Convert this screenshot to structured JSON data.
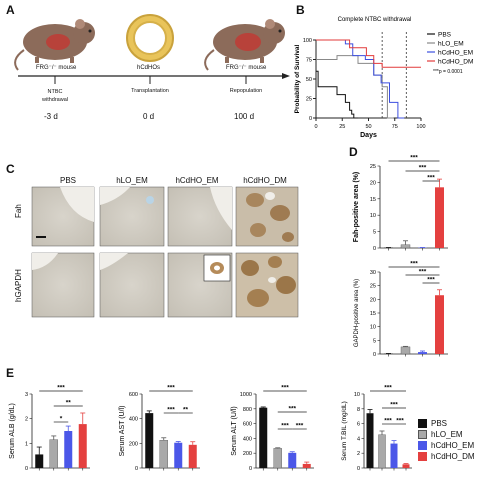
{
  "panels": {
    "A": "A",
    "B": "B",
    "C": "C",
    "D": "D",
    "E": "E"
  },
  "timeline": {
    "mouse_label_1": "FRG⁻/⁻ mouse",
    "device_label": "hCdHOs",
    "mouse_label_2": "FRG⁻/⁻ mouse",
    "events": [
      "NTBC withdrawal",
      "Transplantation",
      "Repopulation"
    ],
    "times": [
      "-3 d",
      "0 d",
      "100 d"
    ]
  },
  "survival": {
    "title": "Complete NTBC withdrawal",
    "ylabel": "Probability of Survival",
    "xlabel": "Days",
    "pvalue": "***p = 0.0001",
    "legend": [
      "PBS",
      "hLO_EM",
      "hCdHO_EM",
      "hCdHO_DM"
    ],
    "colors": {
      "PBS": "#111111",
      "hLO_EM": "#888888",
      "hCdHO_EM": "#3c4fe0",
      "hCdHO_DM": "#e23a3a"
    }
  },
  "micro": {
    "columns": [
      "PBS",
      "hLO_EM",
      "hCdHO_EM",
      "hCdHO_DM"
    ],
    "rows": [
      "Fah",
      "hGAPDH"
    ]
  },
  "chart_data": [
    {
      "type": "line",
      "title": "Complete NTBC withdrawal",
      "xlabel": "Days",
      "ylabel": "Probability of Survival",
      "xlim": [
        0,
        100
      ],
      "ylim": [
        0,
        100
      ],
      "xticks": [
        0,
        25,
        50,
        75,
        100
      ],
      "yticks": [
        0,
        25,
        50,
        75,
        100
      ],
      "series": [
        {
          "name": "PBS",
          "x": [
            0,
            2,
            2,
            20,
            20,
            28,
            28,
            32,
            32,
            34,
            34,
            36,
            36,
            40
          ],
          "y": [
            60,
            60,
            40,
            40,
            30,
            30,
            20,
            20,
            10,
            10,
            5,
            5,
            0,
            0
          ]
        },
        {
          "name": "hLO_EM",
          "x": [
            0,
            20,
            20,
            40,
            40,
            55,
            55,
            63,
            63,
            68,
            68,
            74
          ],
          "y": [
            75,
            75,
            80,
            80,
            70,
            70,
            55,
            55,
            40,
            40,
            0,
            0
          ]
        },
        {
          "name": "hCdHO_EM",
          "x": [
            0,
            28,
            28,
            35,
            35,
            47,
            47,
            55,
            55,
            62,
            62,
            70,
            70,
            78,
            78,
            84
          ],
          "y": [
            100,
            100,
            95,
            95,
            80,
            80,
            75,
            75,
            55,
            55,
            45,
            45,
            20,
            20,
            0,
            0
          ]
        },
        {
          "name": "hCdHO_DM",
          "x": [
            0,
            32,
            32,
            48,
            48,
            55,
            55,
            63,
            63,
            100
          ],
          "y": [
            100,
            100,
            90,
            90,
            80,
            80,
            70,
            70,
            65,
            65
          ]
        }
      ],
      "vlines": [
        63,
        86
      ],
      "legend_position": "right"
    },
    {
      "type": "bar",
      "ylabel": "Fah-positive area (%)",
      "categories": [
        "PBS",
        "hLO_EM",
        "hCdHO_EM",
        "hCdHO_DM"
      ],
      "values": [
        0.05,
        1.0,
        0.05,
        18.5
      ],
      "errors": [
        0.1,
        1.2,
        0.1,
        2.5
      ],
      "ylim": [
        0,
        25
      ],
      "yticks": [
        0,
        5,
        10,
        15,
        20,
        25
      ],
      "significance": [
        "***",
        "***",
        "***"
      ]
    },
    {
      "type": "bar",
      "ylabel": "GAPDH-positive area (%)",
      "categories": [
        "PBS",
        "hLO_EM",
        "hCdHO_EM",
        "hCdHO_DM"
      ],
      "values": [
        0.1,
        2.6,
        0.7,
        21.5
      ],
      "errors": [
        0.1,
        0.2,
        0.4,
        2.0
      ],
      "ylim": [
        0,
        30
      ],
      "yticks": [
        0,
        5,
        10,
        15,
        20,
        25,
        30
      ],
      "significance": [
        "***",
        "***",
        "***"
      ]
    },
    {
      "type": "bar",
      "ylabel": "Serum ALB (g/dL)",
      "categories": [
        "PBS",
        "hLO_EM",
        "hCdHO_EM",
        "hCdHO_DM"
      ],
      "values": [
        0.55,
        1.15,
        1.5,
        1.78
      ],
      "errors": [
        0.3,
        0.15,
        0.2,
        0.45
      ],
      "ylim": [
        0,
        3
      ],
      "yticks": [
        0,
        1,
        2,
        3
      ],
      "significance": [
        "***",
        "**",
        "*"
      ]
    },
    {
      "type": "bar",
      "ylabel": "Serum AST (U/l)",
      "categories": [
        "PBS",
        "hLO_EM",
        "hCdHO_EM",
        "hCdHO_DM"
      ],
      "values": [
        445,
        225,
        205,
        188
      ],
      "errors": [
        18,
        20,
        10,
        25
      ],
      "ylim": [
        0,
        600
      ],
      "yticks": [
        0,
        200,
        400,
        600
      ],
      "significance": [
        "***",
        "***",
        "**"
      ]
    },
    {
      "type": "bar",
      "ylabel": "Serum ALT (U/l)",
      "categories": [
        "PBS",
        "hLO_EM",
        "hCdHO_EM",
        "hCdHO_DM"
      ],
      "values": [
        815,
        265,
        205,
        55
      ],
      "errors": [
        10,
        8,
        15,
        25
      ],
      "ylim": [
        0,
        1000
      ],
      "yticks": [
        0,
        200,
        400,
        600,
        800,
        1000
      ],
      "significance": [
        "***",
        "***",
        "***",
        "***"
      ]
    },
    {
      "type": "bar",
      "ylabel": "Serum T.BIL (mg/dL)",
      "categories": [
        "PBS",
        "hLO_EM",
        "hCdHO_EM",
        "hCdHO_DM"
      ],
      "values": [
        7.4,
        4.5,
        3.3,
        0.5
      ],
      "errors": [
        0.5,
        0.5,
        0.4,
        0.1
      ],
      "ylim": [
        0,
        10
      ],
      "yticks": [
        0,
        2,
        4,
        6,
        8,
        10
      ],
      "significance": [
        "***",
        "***",
        "***",
        "***"
      ]
    }
  ],
  "legendE": [
    {
      "name": "PBS",
      "color": "#111111"
    },
    {
      "name": "hLO_EM",
      "color": "#a9a9a9"
    },
    {
      "name": "hCdHO_EM",
      "color": "#4b57e8"
    },
    {
      "name": "hCdHO_DM",
      "color": "#e4403f"
    }
  ]
}
